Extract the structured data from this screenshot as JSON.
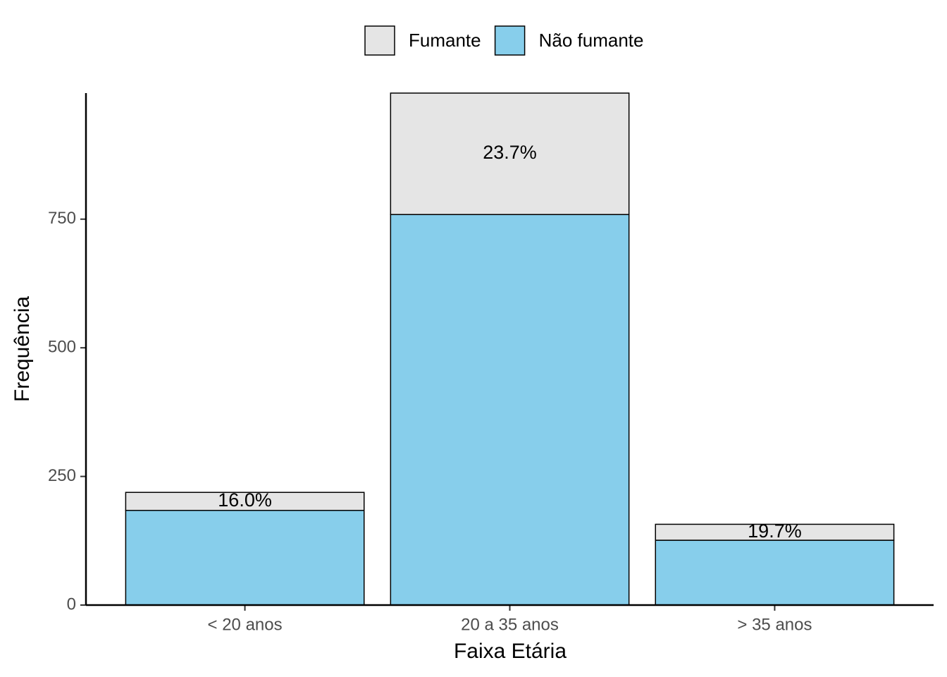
{
  "chart_data": {
    "type": "stacked_bar",
    "x_label": "Faixa Etária",
    "y_label": "Frequência",
    "categories": [
      "< 20 anos",
      "20 a 35 anos",
      "> 35 anos"
    ],
    "series": [
      {
        "name": "Fumante",
        "color": "#e5e5e5",
        "values": [
          35,
          236,
          31
        ]
      },
      {
        "name": "Não fumante",
        "color": "#87ceeb",
        "values": [
          184,
          759,
          126
        ]
      }
    ],
    "share_labels": [
      {
        "value": 16.0,
        "label": "16.0%"
      },
      {
        "value": 23.7,
        "label": "23.7%"
      },
      {
        "value": 19.7,
        "label": "19.7%"
      }
    ],
    "ylim": [
      0,
      995
    ],
    "yticks": [
      0,
      250,
      500,
      750
    ],
    "grid": false,
    "legend": "top"
  }
}
